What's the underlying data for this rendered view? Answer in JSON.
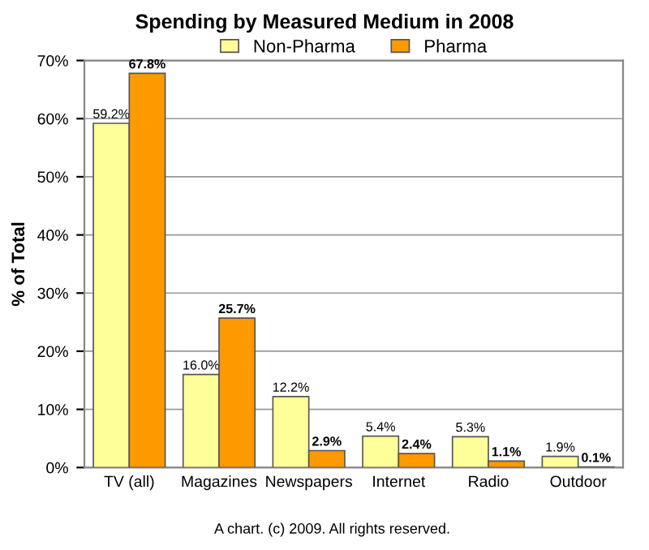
{
  "chart_data": {
    "type": "bar",
    "title": "Spending by Measured Medium in 2008",
    "ylabel": "% of Total",
    "categories": [
      "TV (all)",
      "Magazines",
      "Newspapers",
      "Internet",
      "Radio",
      "Outdoor"
    ],
    "series": [
      {
        "name": "Non-Pharma",
        "color": "#ffff99",
        "values": [
          59.2,
          16.0,
          12.2,
          5.4,
          5.3,
          1.9
        ],
        "value_labels": [
          "59.2%",
          "16.0%",
          "12.2%",
          "5.4%",
          "5.3%",
          "1.9%"
        ]
      },
      {
        "name": "Pharma",
        "color": "#ff9900",
        "values": [
          67.8,
          25.7,
          2.9,
          2.4,
          1.1,
          0.1
        ],
        "value_labels": [
          "67.8%",
          "25.7%",
          "2.9%",
          "2.4%",
          "1.1%",
          "0.1%"
        ]
      }
    ],
    "ylim": [
      0,
      70
    ],
    "yticks": [
      {
        "value": 0,
        "label": "0%"
      },
      {
        "value": 10,
        "label": "10%"
      },
      {
        "value": 20,
        "label": "20%"
      },
      {
        "value": 30,
        "label": "30%"
      },
      {
        "value": 40,
        "label": "40%"
      },
      {
        "value": 50,
        "label": "50%"
      },
      {
        "value": 60,
        "label": "60%"
      },
      {
        "value": 70,
        "label": "70%"
      }
    ],
    "grid": "y",
    "legend": "top",
    "annotations": [
      "A chart. (c) 2009. All rights reserved."
    ]
  }
}
